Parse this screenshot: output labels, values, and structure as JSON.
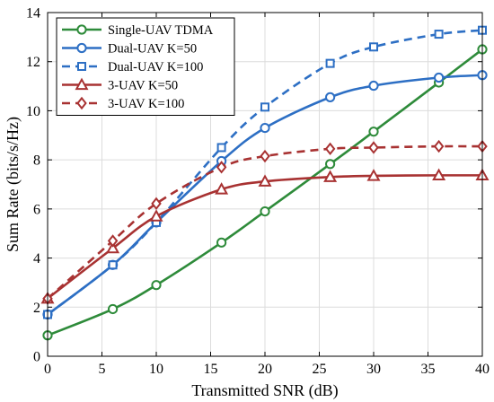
{
  "chart_data": {
    "type": "line",
    "xlabel": "Transmitted SNR (dB)",
    "ylabel": "Sum Rate (bits/s/Hz)",
    "xlim": [
      0,
      40
    ],
    "ylim": [
      0,
      14
    ],
    "xticks": [
      0,
      5,
      10,
      15,
      20,
      25,
      30,
      35,
      40
    ],
    "yticks": [
      0,
      2,
      4,
      6,
      8,
      10,
      12,
      14
    ],
    "grid": true,
    "legend_position": "top-left",
    "series": [
      {
        "name": "Single-UAV TDMA",
        "color": "#2e8b3a",
        "line_style": "solid",
        "marker": "circle",
        "x": [
          0,
          6,
          10,
          16,
          20,
          26,
          30,
          36,
          40
        ],
        "y": [
          0.85,
          1.92,
          2.9,
          4.63,
          5.9,
          7.83,
          9.15,
          11.15,
          12.5
        ]
      },
      {
        "name": "Dual-UAV K=50",
        "color": "#2d6fc4",
        "line_style": "solid",
        "marker": "circle",
        "x": [
          0,
          6,
          10,
          16,
          20,
          26,
          30,
          36,
          40
        ],
        "y": [
          1.7,
          3.72,
          5.45,
          7.95,
          9.3,
          10.55,
          11.02,
          11.35,
          11.45
        ]
      },
      {
        "name": "Dual-UAV K=100",
        "color": "#2d6fc4",
        "line_style": "dashed",
        "marker": "square",
        "x": [
          0,
          6,
          10,
          16,
          20,
          26,
          30,
          36,
          40
        ],
        "y": [
          1.7,
          3.72,
          5.45,
          8.5,
          10.15,
          11.93,
          12.6,
          13.12,
          13.28
        ]
      },
      {
        "name": "3-UAV K=50",
        "color": "#a83232",
        "line_style": "solid",
        "marker": "triangle",
        "x": [
          0,
          6,
          10,
          16,
          20,
          26,
          30,
          36,
          40
        ],
        "y": [
          2.35,
          4.4,
          5.7,
          6.8,
          7.12,
          7.3,
          7.35,
          7.37,
          7.37
        ]
      },
      {
        "name": "3-UAV K=100",
        "color": "#a83232",
        "line_style": "dashed",
        "marker": "diamond",
        "x": [
          0,
          6,
          10,
          16,
          20,
          26,
          30,
          36,
          40
        ],
        "y": [
          2.35,
          4.7,
          6.22,
          7.7,
          8.15,
          8.45,
          8.5,
          8.55,
          8.55
        ]
      }
    ]
  }
}
